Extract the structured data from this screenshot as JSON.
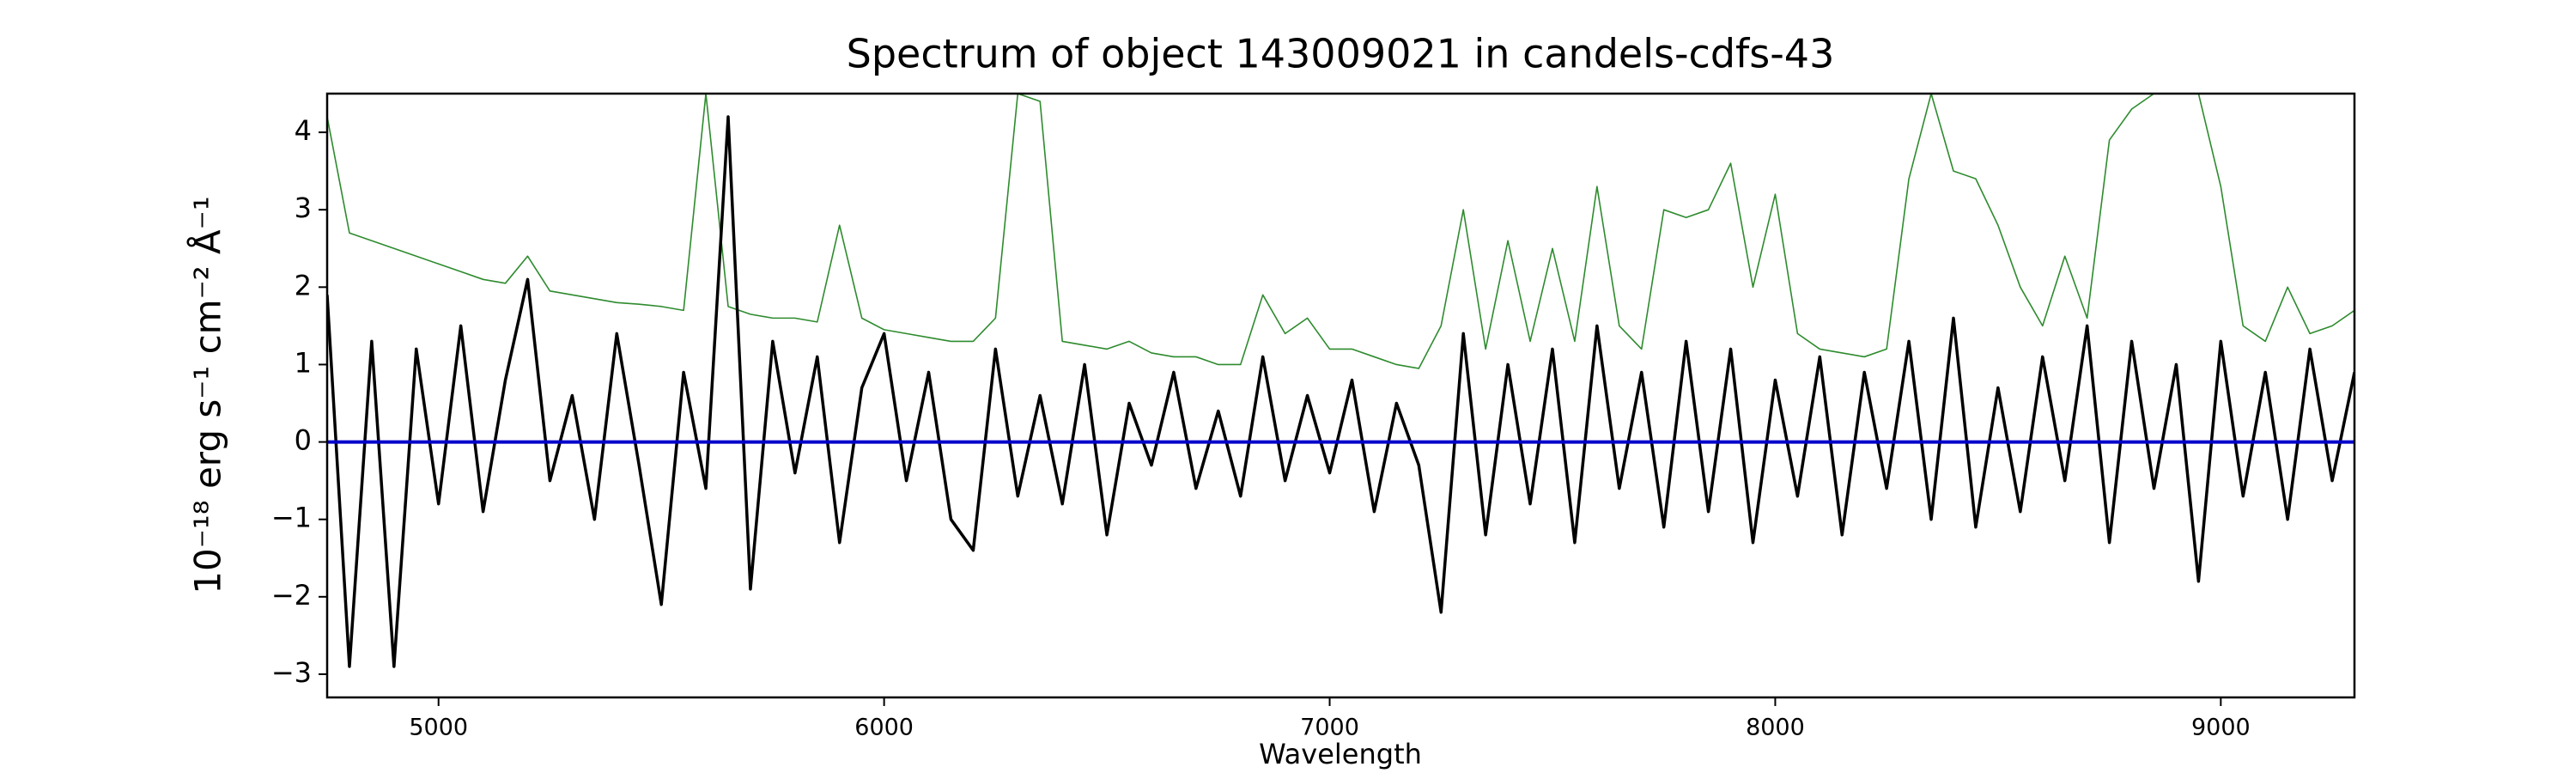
{
  "chart_data": {
    "type": "line",
    "title": "Spectrum of object 143009021 in candels-cdfs-43",
    "xlabel": "Wavelength",
    "ylabel": "10⁻¹⁸ erg s⁻¹ cm⁻² Å⁻¹",
    "x": [
      4750,
      4800,
      4850,
      4900,
      4950,
      5000,
      5050,
      5100,
      5150,
      5200,
      5250,
      5300,
      5350,
      5400,
      5450,
      5500,
      5550,
      5600,
      5650,
      5700,
      5750,
      5800,
      5850,
      5900,
      5950,
      6000,
      6050,
      6100,
      6150,
      6200,
      6250,
      6300,
      6350,
      6400,
      6450,
      6500,
      6550,
      6600,
      6650,
      6700,
      6750,
      6800,
      6850,
      6900,
      6950,
      7000,
      7050,
      7100,
      7150,
      7200,
      7250,
      7300,
      7350,
      7400,
      7450,
      7500,
      7550,
      7600,
      7650,
      7700,
      7750,
      7800,
      7850,
      7900,
      7950,
      8000,
      8050,
      8100,
      8150,
      8200,
      8250,
      8300,
      8350,
      8400,
      8450,
      8500,
      8550,
      8600,
      8650,
      8700,
      8750,
      8800,
      8850,
      8900,
      8950,
      9000,
      9050,
      9100,
      9150,
      9200,
      9250,
      9300
    ],
    "series": [
      {
        "color": "#2e8b2e",
        "width": 1.6,
        "values": [
          4.2,
          2.7,
          2.6,
          2.5,
          2.4,
          2.3,
          2.2,
          2.1,
          2.05,
          2.4,
          1.95,
          1.9,
          1.85,
          1.8,
          1.78,
          1.75,
          1.7,
          4.5,
          1.75,
          1.65,
          1.6,
          1.6,
          1.55,
          2.8,
          1.6,
          1.45,
          1.4,
          1.35,
          1.3,
          1.3,
          1.6,
          4.5,
          4.4,
          1.3,
          1.25,
          1.2,
          1.3,
          1.15,
          1.1,
          1.1,
          1.0,
          1.0,
          1.9,
          1.4,
          1.6,
          1.2,
          1.2,
          1.1,
          1.0,
          0.95,
          1.5,
          3.0,
          1.2,
          2.6,
          1.3,
          2.5,
          1.3,
          3.3,
          1.5,
          1.2,
          3.0,
          2.9,
          3.0,
          3.6,
          2.0,
          3.2,
          1.4,
          1.2,
          1.15,
          1.1,
          1.2,
          3.4,
          4.5,
          3.5,
          3.4,
          2.8,
          2.0,
          1.5,
          2.4,
          1.6,
          3.9,
          4.3,
          4.5,
          4.5,
          4.5,
          3.3,
          1.5,
          1.3,
          2.0,
          1.4,
          1.5,
          1.7
        ]
      },
      {
        "color": "#000000",
        "width": 3.5,
        "values": [
          1.9,
          -2.9,
          1.3,
          -2.9,
          1.2,
          -0.8,
          1.5,
          -0.9,
          0.8,
          2.1,
          -0.5,
          0.6,
          -1.0,
          1.4,
          -0.3,
          -2.1,
          0.9,
          -0.6,
          4.2,
          -1.9,
          1.3,
          -0.4,
          1.1,
          -1.3,
          0.7,
          1.4,
          -0.5,
          0.9,
          -1.0,
          -1.4,
          1.2,
          -0.7,
          0.6,
          -0.8,
          1.0,
          -1.2,
          0.5,
          -0.3,
          0.9,
          -0.6,
          0.4,
          -0.7,
          1.1,
          -0.5,
          0.6,
          -0.4,
          0.8,
          -0.9,
          0.5,
          -0.3,
          -2.2,
          1.4,
          -1.2,
          1.0,
          -0.8,
          1.2,
          -1.3,
          1.5,
          -0.6,
          0.9,
          -1.1,
          1.3,
          -0.9,
          1.2,
          -1.3,
          0.8,
          -0.7,
          1.1,
          -1.2,
          0.9,
          -0.6,
          1.3,
          -1.0,
          1.6,
          -1.1,
          0.7,
          -0.9,
          1.1,
          -0.5,
          1.5,
          -1.3,
          1.3,
          -0.6,
          1.0,
          -1.8,
          1.3,
          -0.7,
          0.9,
          -1.0,
          1.2,
          -0.5,
          0.9
        ]
      }
    ],
    "zero_line": {
      "value": 0,
      "color": "#0000cc"
    },
    "xlim": [
      4750,
      9300
    ],
    "ylim": [
      -3.3,
      4.5
    ],
    "xticks": [
      5000,
      6000,
      7000,
      8000,
      9000
    ],
    "yticks": [
      {
        "value": -3,
        "label": "−3"
      },
      {
        "value": -2,
        "label": "−2"
      },
      {
        "value": -1,
        "label": "−1"
      },
      0,
      1,
      2,
      3,
      4
    ]
  }
}
